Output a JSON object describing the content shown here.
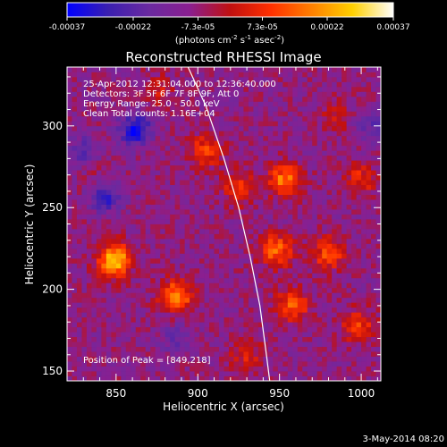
{
  "chart_data": {
    "type": "heatmap",
    "title": "Reconstructed RHESSI Image",
    "xlabel": "Heliocentric X (arcsec)",
    "ylabel": "Heliocentric Y (arcsec)",
    "xlim": [
      820,
      1012
    ],
    "ylim": [
      144,
      336
    ],
    "x_ticks": [
      850,
      900,
      950,
      1000
    ],
    "y_ticks": [
      150,
      200,
      250,
      300
    ],
    "colorbar": {
      "min": -0.00037,
      "max": 0.00037,
      "ticks": [
        "-0.00037",
        "-0.00022",
        "-7.3e-05",
        "7.3e-05",
        "0.00022",
        "0.00037"
      ],
      "tick_values": [
        -0.00037,
        -0.00022,
        -7.3e-05,
        7.3e-05,
        0.00022,
        0.00037
      ],
      "unit_base": "(photons cm",
      "unit_exp1": "-2",
      "unit_mid": " s",
      "unit_exp2": "-1",
      "unit_mid2": " asec",
      "unit_exp3": "-2",
      "unit_end": ")",
      "colors": [
        "#0000ff",
        "#3a1fb0",
        "#6a2aa0",
        "#8a1f90",
        "#c01010",
        "#ff3000",
        "#ff8000",
        "#ffd000",
        "#ffffff"
      ]
    },
    "annotations": {
      "time": "25-Apr-2012 12:31:04.000 to 12:36:40.000",
      "detectors": "Detectors: 3F 5F 6F 7F 8F 9F, Att 0",
      "energy": "Energy Range: 25.0 - 50.0 keV",
      "clean": "Clean    Total counts: 1.16E+04",
      "peak": "Position of Peak = [849,218]"
    },
    "sources": [
      {
        "x": 849,
        "y": 218,
        "peak": 0.00037
      },
      {
        "x": 887,
        "y": 196,
        "peak": 0.00028
      },
      {
        "x": 953,
        "y": 267,
        "peak": 0.00026
      },
      {
        "x": 948,
        "y": 224,
        "peak": 0.00024
      },
      {
        "x": 958,
        "y": 190,
        "peak": 0.00022
      },
      {
        "x": 980,
        "y": 222,
        "peak": 0.0002
      },
      {
        "x": 905,
        "y": 285,
        "peak": 0.00018
      },
      {
        "x": 925,
        "y": 262,
        "peak": 0.00016
      },
      {
        "x": 1000,
        "y": 268,
        "peak": 0.00014
      },
      {
        "x": 998,
        "y": 178,
        "peak": 0.00018
      },
      {
        "x": 930,
        "y": 160,
        "peak": 0.00012
      },
      {
        "x": 875,
        "y": 322,
        "peak": 0.0001
      },
      {
        "x": 842,
        "y": 268,
        "peak": 8e-05
      },
      {
        "x": 985,
        "y": 305,
        "peak": 9e-05
      },
      {
        "x": 862,
        "y": 298,
        "peak": -0.00025
      },
      {
        "x": 844,
        "y": 258,
        "peak": -0.00022
      },
      {
        "x": 830,
        "y": 285,
        "peak": -0.00012
      },
      {
        "x": 888,
        "y": 170,
        "peak": -0.0001
      },
      {
        "x": 1005,
        "y": 300,
        "peak": -0.00012
      }
    ],
    "limb": [
      [
        894,
        336
      ],
      [
        905,
        312
      ],
      [
        916,
        280
      ],
      [
        925,
        250
      ],
      [
        932,
        220
      ],
      [
        938,
        190
      ],
      [
        942,
        160
      ],
      [
        944,
        144
      ]
    ]
  },
  "footer": {
    "date": "3-May-2014 08:20"
  }
}
